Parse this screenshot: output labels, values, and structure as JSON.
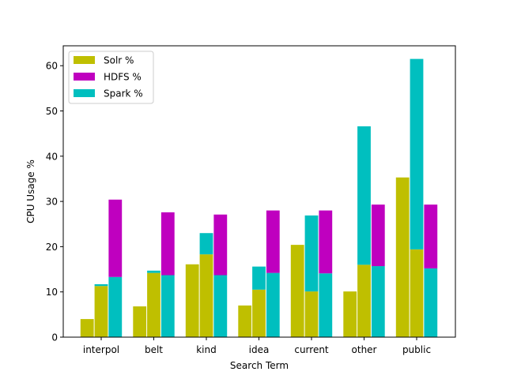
{
  "chart_data": {
    "type": "bar",
    "xlabel": "Search Term",
    "ylabel": "CPU Usage %",
    "ylim": [
      0,
      64.4
    ],
    "yticks": [
      0,
      10,
      20,
      30,
      40,
      50,
      60
    ],
    "grid": false,
    "legend_position": "top-left",
    "categories": [
      "interpol",
      "belt",
      "kind",
      "idea",
      "current",
      "other",
      "public"
    ],
    "series": [
      {
        "name": "Solr %",
        "color": "#bfbf00"
      },
      {
        "name": "HDFS %",
        "color": "#bf00bf"
      },
      {
        "name": "Spark %",
        "color": "#00bfbf"
      }
    ],
    "stacks": [
      [
        [
          {
            "series": 0,
            "value": 4
          }
        ],
        [
          {
            "series": 0,
            "value": 11.3
          },
          {
            "series": 2,
            "value": 0.4
          }
        ],
        [
          {
            "series": 2,
            "value": 13.3
          },
          {
            "series": 1,
            "value": 17.1
          }
        ]
      ],
      [
        [
          {
            "series": 0,
            "value": 6.8
          }
        ],
        [
          {
            "series": 0,
            "value": 14.2
          },
          {
            "series": 2,
            "value": 0.5
          }
        ],
        [
          {
            "series": 2,
            "value": 13.7
          },
          {
            "series": 1,
            "value": 13.9
          }
        ]
      ],
      [
        [
          {
            "series": 0,
            "value": 16.1
          }
        ],
        [
          {
            "series": 0,
            "value": 18.3
          },
          {
            "series": 2,
            "value": 4.7
          }
        ],
        [
          {
            "series": 2,
            "value": 13.7
          },
          {
            "series": 1,
            "value": 13.4
          }
        ]
      ],
      [
        [
          {
            "series": 0,
            "value": 7
          }
        ],
        [
          {
            "series": 0,
            "value": 10.5
          },
          {
            "series": 2,
            "value": 5.1
          }
        ],
        [
          {
            "series": 2,
            "value": 14.2
          },
          {
            "series": 1,
            "value": 13.8
          }
        ]
      ],
      [
        [
          {
            "series": 0,
            "value": 20.4
          }
        ],
        [
          {
            "series": 0,
            "value": 10.1
          },
          {
            "series": 2,
            "value": 16.8
          }
        ],
        [
          {
            "series": 2,
            "value": 14.1
          },
          {
            "series": 1,
            "value": 13.9
          }
        ]
      ],
      [
        [
          {
            "series": 0,
            "value": 10.1
          }
        ],
        [
          {
            "series": 0,
            "value": 16
          },
          {
            "series": 2,
            "value": 30.6
          }
        ],
        [
          {
            "series": 2,
            "value": 15.7
          },
          {
            "series": 1,
            "value": 13.6
          }
        ]
      ],
      [
        [
          {
            "series": 0,
            "value": 35.3
          }
        ],
        [
          {
            "series": 0,
            "value": 19.4
          },
          {
            "series": 2,
            "value": 42.1
          }
        ],
        [
          {
            "series": 2,
            "value": 15.2
          },
          {
            "series": 1,
            "value": 14.1
          }
        ]
      ]
    ]
  }
}
